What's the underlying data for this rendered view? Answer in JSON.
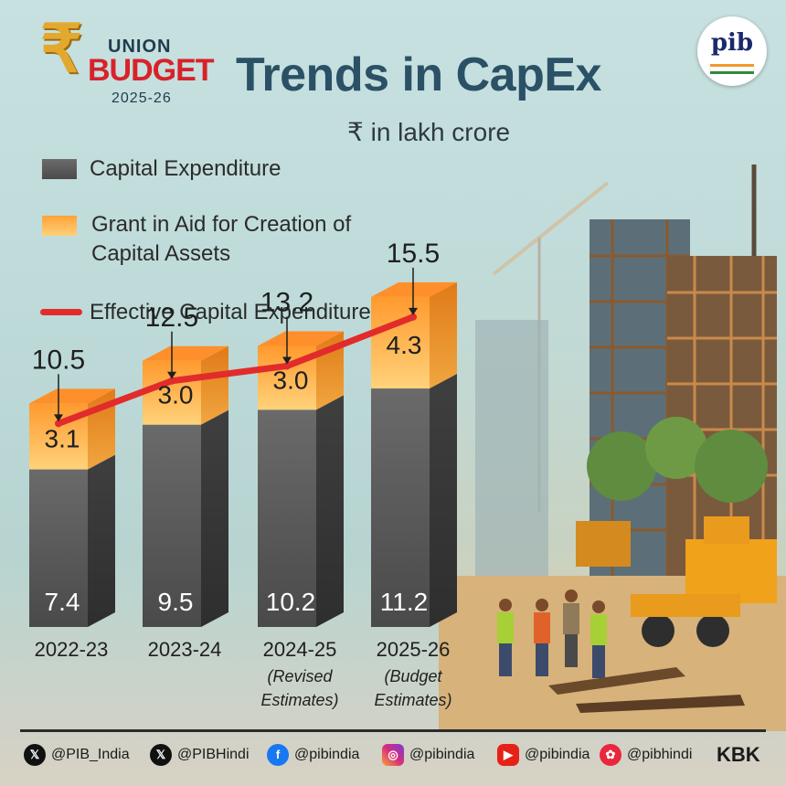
{
  "logo": {
    "union": "UNION",
    "budget": "BUDGET",
    "year": "2025-26",
    "rupee": "₹"
  },
  "title": "Trends in CapEx",
  "unit": "₹ in lakh crore",
  "pib_logo": {
    "text": "pib"
  },
  "legend": [
    {
      "label": "Capital Expenditure",
      "color": "#555555"
    },
    {
      "label": "Grant in Aid for Creation of Capital Assets",
      "color": "#ffb347"
    },
    {
      "label": "Effective Capital Expenditure",
      "color": "#e22b2b"
    }
  ],
  "chart_data": {
    "type": "bar",
    "stacked": true,
    "categories": [
      "2022-23",
      "2023-24",
      "2024-25",
      "2025-26"
    ],
    "category_notes": [
      "",
      "",
      "(Revised Estimates)",
      "(Budget Estimates)"
    ],
    "series": [
      {
        "name": "Capital Expenditure",
        "values": [
          7.4,
          9.5,
          10.2,
          11.2
        ],
        "color": "#555555"
      },
      {
        "name": "Grant in Aid for Creation of Capital Assets",
        "values": [
          3.1,
          3.0,
          3.0,
          4.3
        ],
        "color": "#ffb347"
      }
    ],
    "line": {
      "name": "Effective Capital Expenditure",
      "values": [
        10.5,
        12.5,
        13.2,
        15.5
      ],
      "color": "#e22b2b"
    },
    "value_labels": {
      "bottom": [
        "7.4",
        "9.5",
        "10.2",
        "11.2"
      ],
      "top": [
        "3.1",
        "3.0",
        "3.0",
        "4.3"
      ],
      "total": [
        "10.5",
        "12.5",
        "13.2",
        "15.5"
      ]
    },
    "grid": false
  },
  "footer": {
    "handles": [
      {
        "icon": "x-icon",
        "text": "@PIB_India"
      },
      {
        "icon": "x-icon",
        "text": "@PIBHindi"
      },
      {
        "icon": "facebook-icon",
        "text": "@pibindia"
      },
      {
        "icon": "instagram-icon",
        "text": "@pibindia"
      },
      {
        "icon": "youtube-icon",
        "text": "@pibindia"
      },
      {
        "icon": "kooapp-icon",
        "text": "@pibhindi"
      }
    ],
    "brand": "KBK"
  }
}
